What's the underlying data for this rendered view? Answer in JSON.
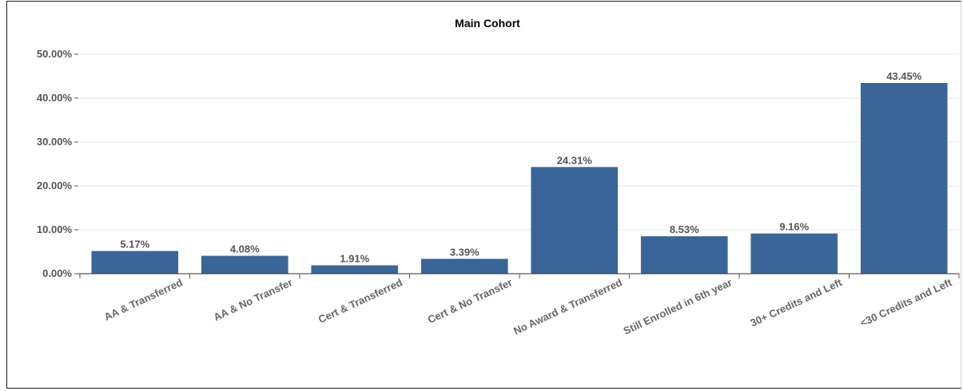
{
  "chart_data": {
    "type": "bar",
    "title": "Main Cohort",
    "xlabel": "",
    "ylabel": "",
    "categories": [
      "AA & Transferred",
      "AA & No Transfer",
      "Cert & Transferred",
      "Cert & No Transfer",
      "No Award & Transferred",
      "Still Enrolled in 6th year",
      "30+ Credits and Left",
      "<30 Credits and Left"
    ],
    "values": [
      5.17,
      4.08,
      1.91,
      3.39,
      24.31,
      8.53,
      9.16,
      43.45
    ],
    "data_labels": [
      "5.17%",
      "4.08%",
      "1.91%",
      "3.39%",
      "24.31%",
      "8.53%",
      "9.16%",
      "43.45%"
    ],
    "yticks": [
      0,
      10,
      20,
      30,
      40,
      50
    ],
    "ytick_labels": [
      "0.00%",
      "10.00%",
      "20.00%",
      "30.00%",
      "40.00%",
      "50.00%"
    ],
    "ylim": [
      0,
      50
    ],
    "grid": true,
    "legend": "none",
    "colors": {
      "bar": "#3a6598",
      "grid": "#e6e6e6",
      "axis": "#555555"
    }
  }
}
